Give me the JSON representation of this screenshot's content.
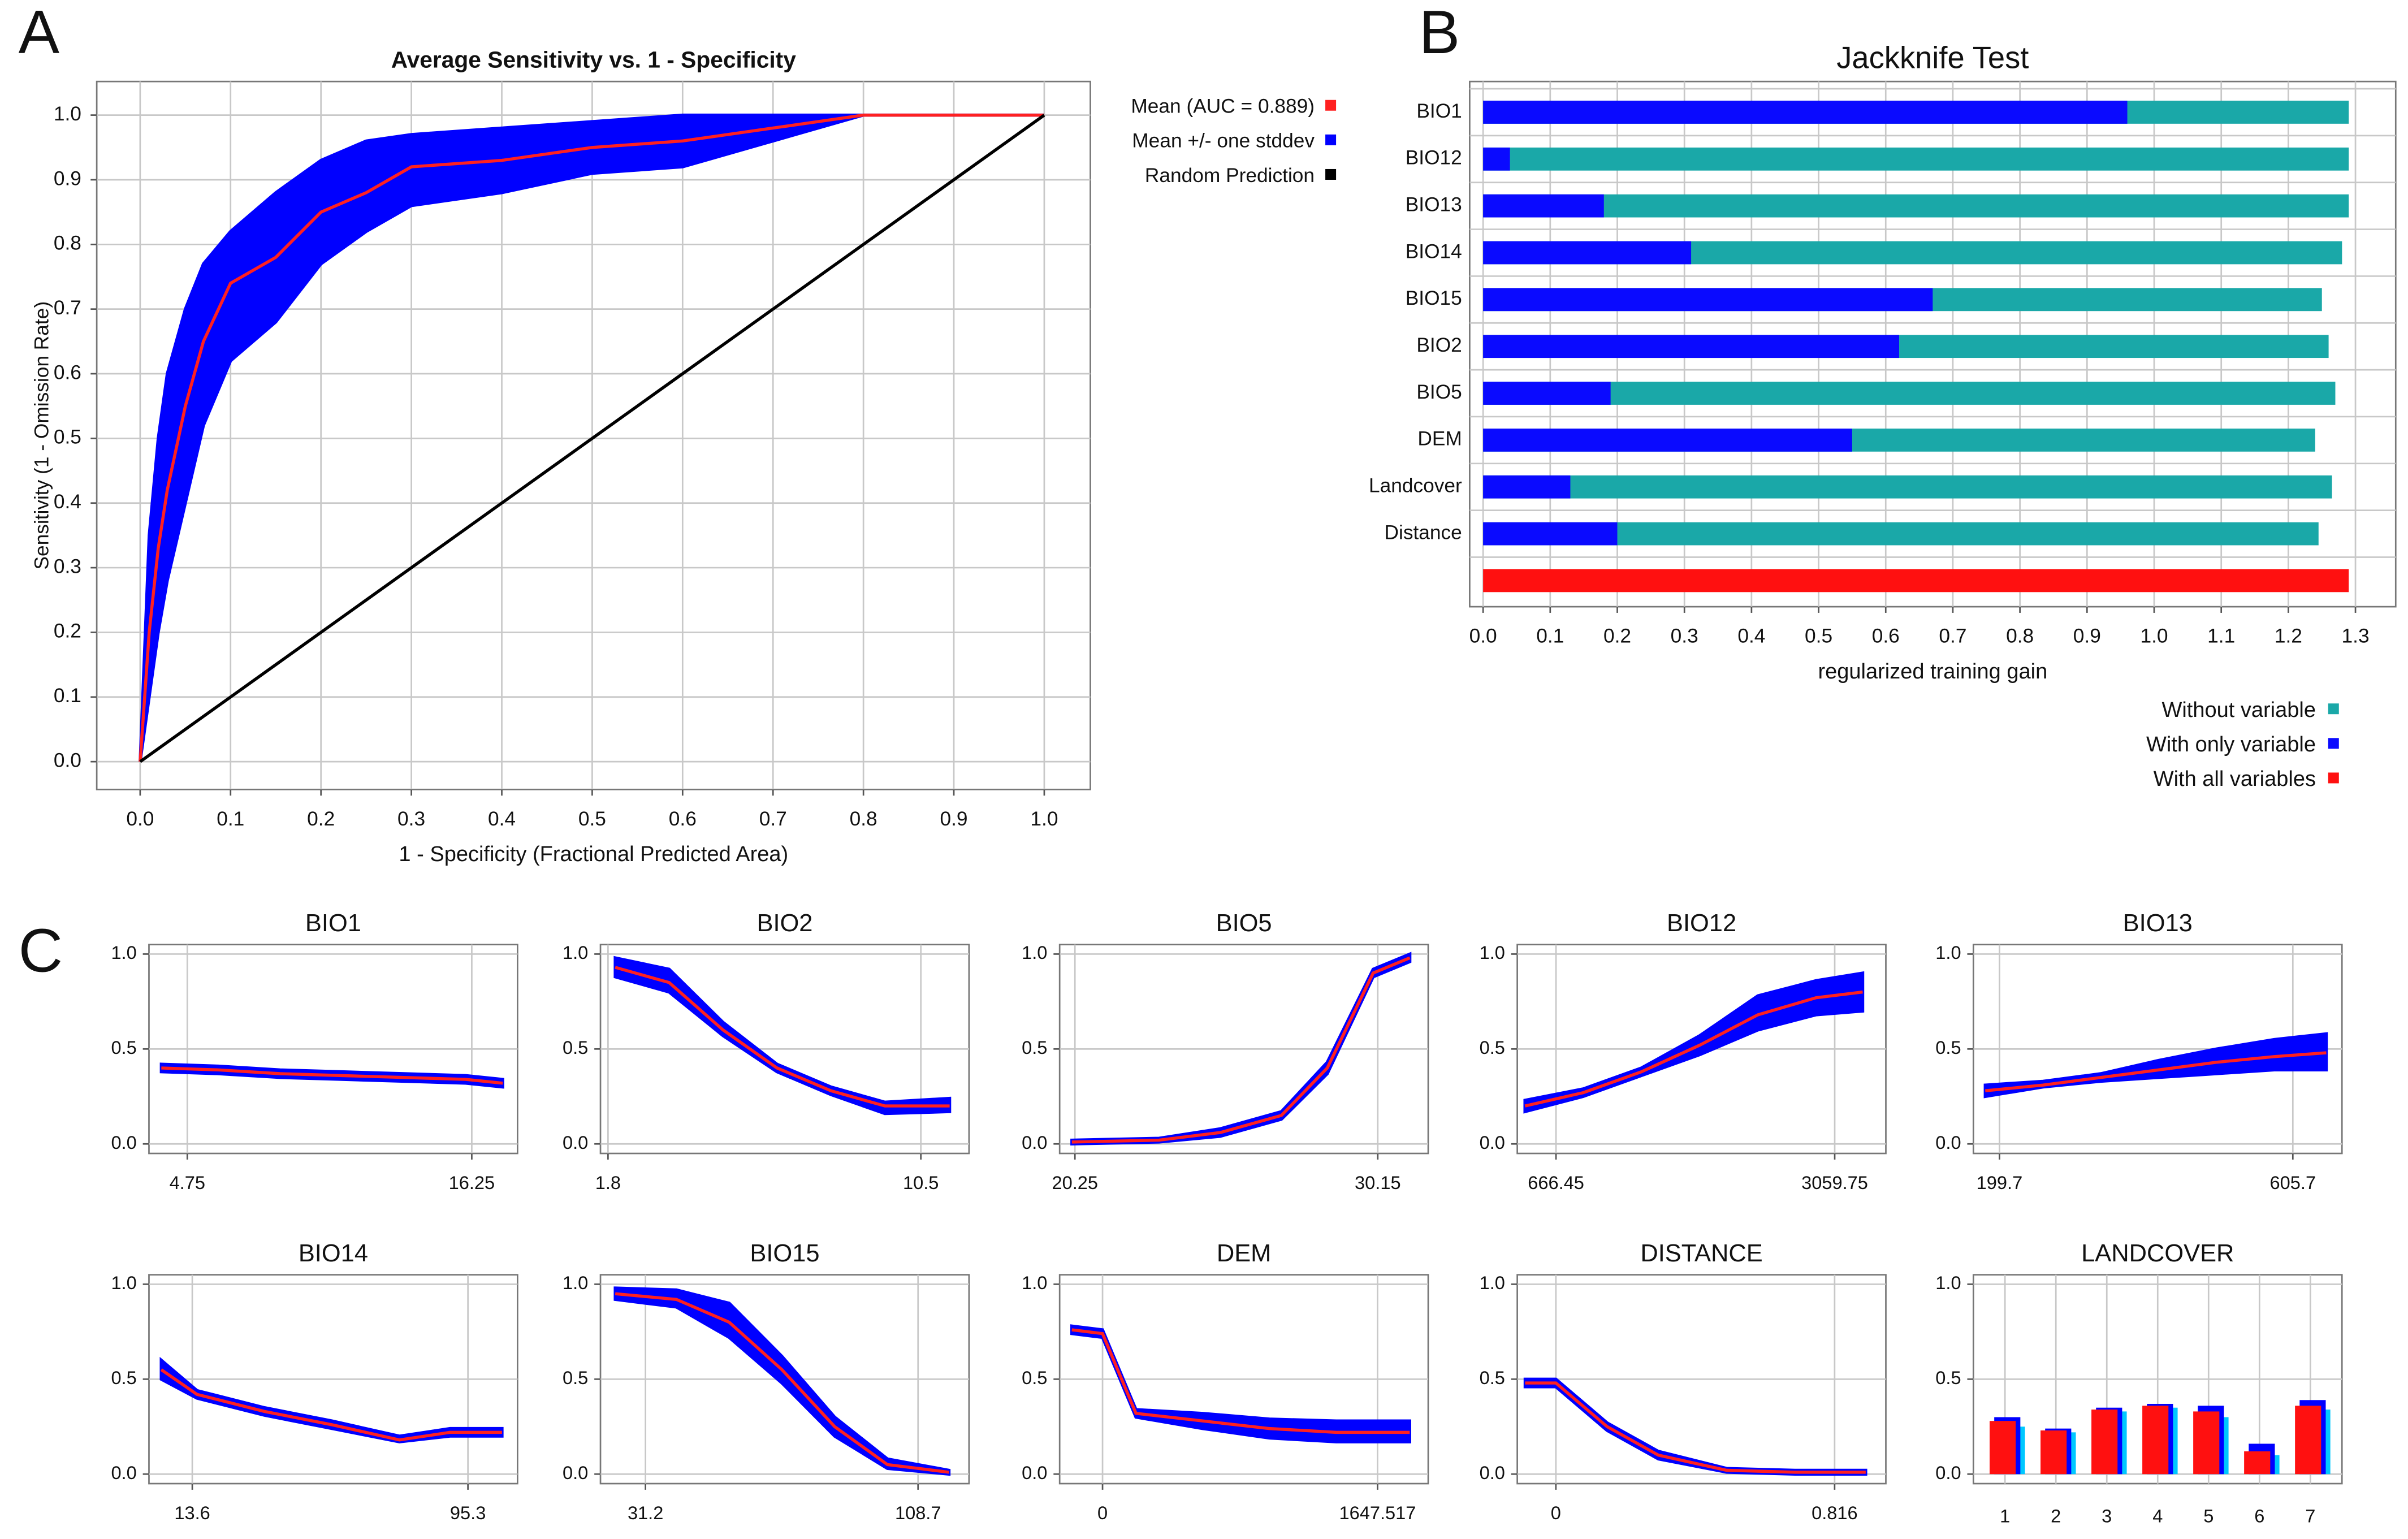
{
  "panel_labels": [
    "A",
    "B",
    "C"
  ],
  "chart_data": [
    {
      "type": "line",
      "title": "Average Sensitivity vs. 1 - Specificity",
      "xlabel": "1 - Specificity (Fractional Predicted Area)",
      "ylabel": "Sensitivity (1 - Omission Rate)",
      "x": [
        0,
        0.01,
        0.02,
        0.03,
        0.05,
        0.07,
        0.1,
        0.15,
        0.2,
        0.25,
        0.3,
        0.4,
        0.5,
        0.6,
        0.7,
        0.8,
        1.0
      ],
      "series": [
        {
          "name": "Mean +/- one stddev",
          "color": "#0000ff",
          "lower": [
            0,
            0.1,
            0.2,
            0.28,
            0.4,
            0.52,
            0.62,
            0.68,
            0.77,
            0.82,
            0.86,
            0.88,
            0.91,
            0.92,
            0.96,
            1.0,
            1.0
          ],
          "upper": [
            0,
            0.35,
            0.5,
            0.6,
            0.7,
            0.77,
            0.82,
            0.88,
            0.93,
            0.96,
            0.97,
            0.98,
            0.99,
            1.0,
            1.0,
            1.0,
            1.0
          ]
        },
        {
          "name": "Mean (AUC = 0.889)",
          "color": "#ff2020",
          "values": [
            0,
            0.2,
            0.33,
            0.42,
            0.55,
            0.65,
            0.74,
            0.78,
            0.85,
            0.88,
            0.92,
            0.93,
            0.95,
            0.96,
            0.98,
            1.0,
            1.0
          ]
        },
        {
          "name": "Random Prediction",
          "color": "#000000",
          "values": [
            0,
            0.01,
            0.02,
            0.03,
            0.05,
            0.07,
            0.1,
            0.15,
            0.2,
            0.25,
            0.3,
            0.4,
            0.5,
            0.6,
            0.7,
            0.8,
            1.0
          ]
        }
      ],
      "xlim": [
        -0.048,
        1.051
      ],
      "ylim": [
        -0.043,
        1.052
      ],
      "xticks": [
        {
          "value": 0,
          "label": "0.0"
        },
        0.1,
        0.2,
        0.3,
        0.4,
        0.5,
        0.6,
        0.7,
        0.8,
        0.9,
        {
          "value": 1,
          "label": "1.0"
        }
      ],
      "yticks": [
        {
          "value": 0,
          "label": "0.0"
        },
        0.1,
        0.2,
        0.3,
        0.4,
        0.5,
        0.6,
        0.7,
        0.8,
        0.9,
        {
          "value": 1,
          "label": "1.0"
        }
      ],
      "grid": true,
      "legend": "right"
    },
    {
      "type": "barh",
      "title": "Jackknife Test",
      "xlabel": "regularized training gain",
      "categories": [
        "BIO1",
        "BIO12",
        "BIO13",
        "BIO14",
        "BIO15",
        "BIO2",
        "BIO5",
        "DEM",
        "Landcover",
        "Distance",
        null
      ],
      "series": [
        {
          "name": "Without variable",
          "color": "#1aa8a8",
          "values": [
            1.29,
            1.29,
            1.29,
            1.28,
            1.25,
            1.26,
            1.27,
            1.24,
            1.265,
            1.245,
            null
          ]
        },
        {
          "name": "With only variable",
          "color": "#0a0aff",
          "values": [
            0.96,
            0.04,
            0.18,
            0.31,
            0.67,
            0.62,
            0.19,
            0.55,
            0.13,
            0.2,
            null
          ]
        },
        {
          "name": "With all variables",
          "color": "#ff1010",
          "values": [
            null,
            null,
            null,
            null,
            null,
            null,
            null,
            null,
            null,
            null,
            1.29
          ]
        }
      ],
      "xlim": [
        -0.02,
        1.36
      ],
      "xticks": [
        {
          "value": 0,
          "label": "0.0"
        },
        0.1,
        0.2,
        0.3,
        0.4,
        0.5,
        0.6,
        0.7,
        0.8,
        0.9,
        {
          "value": 1,
          "label": "1.0"
        },
        1.1,
        1.2,
        1.3
      ],
      "grid": true,
      "legend": "bottom-right"
    },
    {
      "type": "line",
      "title": "BIO1",
      "x": [
        3.7,
        6,
        8.5,
        11,
        13.5,
        16,
        17.5
      ],
      "series": [
        {
          "color": "#0000ff",
          "lower": [
            0.38,
            0.37,
            0.35,
            0.34,
            0.33,
            0.32,
            0.3
          ],
          "upper": [
            0.42,
            0.41,
            0.39,
            0.38,
            0.37,
            0.36,
            0.34
          ]
        },
        {
          "color": "#ff2020",
          "values": [
            0.4,
            0.39,
            0.37,
            0.36,
            0.35,
            0.34,
            0.32
          ]
        }
      ],
      "xlim": [
        3.2,
        18.1
      ],
      "ylim": [
        -0.05,
        1.05
      ],
      "xticks": [
        4.75,
        16.25
      ],
      "yticks": [
        {
          "value": 0,
          "label": "0.0"
        },
        0.5,
        {
          "value": 1,
          "label": "1.0"
        }
      ],
      "grid": true
    },
    {
      "type": "line",
      "title": "BIO2",
      "x": [
        2,
        3.5,
        5,
        6.5,
        8,
        9.5,
        11.3
      ],
      "series": [
        {
          "color": "#0000ff",
          "lower": [
            0.88,
            0.8,
            0.57,
            0.38,
            0.26,
            0.16,
            0.17
          ],
          "upper": [
            0.98,
            0.92,
            0.64,
            0.42,
            0.3,
            0.22,
            0.24
          ]
        },
        {
          "color": "#ff2020",
          "values": [
            0.93,
            0.85,
            0.6,
            0.4,
            0.28,
            0.2,
            0.2
          ]
        }
      ],
      "xlim": [
        1.59,
        11.84
      ],
      "ylim": [
        -0.05,
        1.05
      ],
      "xticks": [
        1.8,
        10.5
      ],
      "yticks": [
        {
          "value": 0,
          "label": "0.0"
        },
        0.5,
        {
          "value": 1,
          "label": "1.0"
        }
      ],
      "grid": true
    },
    {
      "type": "line",
      "title": "BIO5",
      "x": [
        20.15,
        23,
        25,
        27,
        28.5,
        30,
        31.2
      ],
      "series": [
        {
          "color": "#0000ff",
          "lower": [
            0,
            0.01,
            0.04,
            0.13,
            0.37,
            0.88,
            0.96
          ],
          "upper": [
            0.02,
            0.03,
            0.08,
            0.17,
            0.43,
            0.92,
            1.0
          ]
        },
        {
          "color": "#ff2020",
          "values": [
            0.01,
            0.02,
            0.06,
            0.15,
            0.4,
            0.9,
            0.98
          ]
        }
      ],
      "xlim": [
        19.75,
        31.8
      ],
      "ylim": [
        -0.05,
        1.05
      ],
      "xticks": [
        20.25,
        30.15
      ],
      "yticks": [
        {
          "value": 0,
          "label": "0.0"
        },
        0.5,
        {
          "value": 1,
          "label": "1.0"
        }
      ],
      "grid": true
    },
    {
      "type": "line",
      "title": "BIO12",
      "x": [
        400,
        900,
        1400,
        1900,
        2400,
        2900,
        3300
      ],
      "series": [
        {
          "color": "#0000ff",
          "lower": [
            0.17,
            0.25,
            0.36,
            0.47,
            0.6,
            0.68,
            0.7
          ],
          "upper": [
            0.23,
            0.29,
            0.4,
            0.57,
            0.78,
            0.86,
            0.9
          ]
        },
        {
          "color": "#ff2020",
          "values": [
            0.2,
            0.27,
            0.38,
            0.52,
            0.68,
            0.77,
            0.8
          ]
        }
      ],
      "xlim": [
        334,
        3499
      ],
      "ylim": [
        -0.05,
        1.05
      ],
      "xticks": [
        666.45,
        3059.75
      ],
      "yticks": [
        {
          "value": 0,
          "label": "0.0"
        },
        0.5,
        {
          "value": 1,
          "label": "1.0"
        }
      ],
      "grid": true
    },
    {
      "type": "line",
      "title": "BIO13",
      "x": [
        180,
        260,
        340,
        420,
        500,
        580,
        652
      ],
      "series": [
        {
          "color": "#0000ff",
          "lower": [
            0.25,
            0.3,
            0.33,
            0.35,
            0.37,
            0.39,
            0.39
          ],
          "upper": [
            0.31,
            0.33,
            0.37,
            0.44,
            0.5,
            0.55,
            0.58
          ]
        },
        {
          "color": "#ff2020",
          "values": [
            0.28,
            0.31,
            0.35,
            0.39,
            0.43,
            0.46,
            0.48
          ]
        }
      ],
      "xlim": [
        163.6,
        673.7
      ],
      "ylim": [
        -0.05,
        1.05
      ],
      "xticks": [
        199.7,
        605.7
      ],
      "yticks": [
        {
          "value": 0,
          "label": "0.0"
        },
        0.5,
        {
          "value": 1,
          "label": "1.0"
        }
      ],
      "grid": true
    },
    {
      "type": "line",
      "title": "BIO14",
      "x": [
        4.4,
        15,
        35,
        55,
        75,
        90,
        105.4
      ],
      "series": [
        {
          "color": "#0000ff",
          "lower": [
            0.5,
            0.4,
            0.31,
            0.24,
            0.17,
            0.2,
            0.2
          ],
          "upper": [
            0.6,
            0.44,
            0.35,
            0.28,
            0.2,
            0.24,
            0.24
          ]
        },
        {
          "color": "#ff2020",
          "values": [
            0.55,
            0.42,
            0.33,
            0.26,
            0.18,
            0.22,
            0.22
          ]
        }
      ],
      "xlim": [
        0.76,
        110
      ],
      "ylim": [
        -0.05,
        1.05
      ],
      "xticks": [
        13.6,
        95.3
      ],
      "yticks": [
        {
          "value": 0,
          "label": "0.0"
        },
        0.5,
        {
          "value": 1,
          "label": "1.0"
        }
      ],
      "grid": true
    },
    {
      "type": "line",
      "title": "BIO15",
      "x": [
        22.6,
        40,
        55,
        70,
        85,
        100,
        117.5
      ],
      "series": [
        {
          "color": "#0000ff",
          "lower": [
            0.92,
            0.88,
            0.72,
            0.48,
            0.2,
            0.03,
            0
          ],
          "upper": [
            0.98,
            0.97,
            0.9,
            0.62,
            0.3,
            0.08,
            0.02
          ]
        },
        {
          "color": "#ff2020",
          "values": [
            0.95,
            0.92,
            0.8,
            0.55,
            0.25,
            0.05,
            0.01
          ]
        }
      ],
      "xlim": [
        18.4,
        123.2
      ],
      "ylim": [
        -0.05,
        1.05
      ],
      "xticks": [
        31.2,
        108.7
      ],
      "yticks": [
        {
          "value": 0,
          "label": "0.0"
        },
        0.5,
        {
          "value": 1,
          "label": "1.0"
        }
      ],
      "grid": true
    },
    {
      "type": "line",
      "title": "DEM",
      "x": [
        -184,
        0,
        200,
        600,
        1000,
        1400,
        1840
      ],
      "series": [
        {
          "color": "#0000ff",
          "lower": [
            0.74,
            0.72,
            0.3,
            0.24,
            0.19,
            0.17,
            0.17
          ],
          "upper": [
            0.78,
            0.76,
            0.34,
            0.32,
            0.29,
            0.28,
            0.28
          ]
        },
        {
          "color": "#ff2020",
          "values": [
            0.76,
            0.74,
            0.32,
            0.28,
            0.24,
            0.22,
            0.22
          ]
        }
      ],
      "xlim": [
        -257,
        1951
      ],
      "ylim": [
        -0.05,
        1.05
      ],
      "xticks": [
        0,
        1647.517
      ],
      "yticks": [
        {
          "value": 0,
          "label": "0.0"
        },
        0.5,
        {
          "value": 1,
          "label": "1.0"
        }
      ],
      "grid": true
    },
    {
      "type": "line",
      "title": "DISTANCE",
      "x": [
        -0.09,
        0,
        0.15,
        0.3,
        0.5,
        0.7,
        0.907
      ],
      "series": [
        {
          "color": "#0000ff",
          "lower": [
            0.46,
            0.46,
            0.23,
            0.08,
            0.01,
            0,
            0
          ],
          "upper": [
            0.5,
            0.5,
            0.27,
            0.12,
            0.03,
            0.02,
            0.02
          ]
        },
        {
          "color": "#ff2020",
          "values": [
            0.48,
            0.48,
            0.25,
            0.1,
            0.02,
            0.01,
            0.01
          ]
        }
      ],
      "xlim": [
        -0.113,
        0.966
      ],
      "ylim": [
        -0.05,
        1.05
      ],
      "xticks": [
        0,
        0.816
      ],
      "yticks": [
        {
          "value": 0,
          "label": "0.0"
        },
        0.5,
        {
          "value": 1,
          "label": "1.0"
        }
      ],
      "grid": true
    },
    {
      "type": "bar",
      "title": "LANDCOVER",
      "categories": [
        "1",
        "2",
        "3",
        "4",
        "5",
        "6",
        "7"
      ],
      "series": [
        {
          "color": "#00c8ff",
          "values": [
            0.25,
            0.22,
            0.33,
            0.35,
            0.3,
            0.1,
            0.34
          ]
        },
        {
          "color": "#0000ff",
          "values": [
            0.3,
            0.24,
            0.35,
            0.37,
            0.36,
            0.16,
            0.39
          ]
        },
        {
          "color": "#ff1010",
          "values": [
            0.28,
            0.23,
            0.34,
            0.36,
            0.33,
            0.12,
            0.36
          ]
        }
      ],
      "ylim": [
        -0.05,
        1.05
      ],
      "yticks": [
        {
          "value": 0,
          "label": "0.0"
        },
        0.5,
        {
          "value": 1,
          "label": "1.0"
        }
      ],
      "grid": true
    }
  ]
}
